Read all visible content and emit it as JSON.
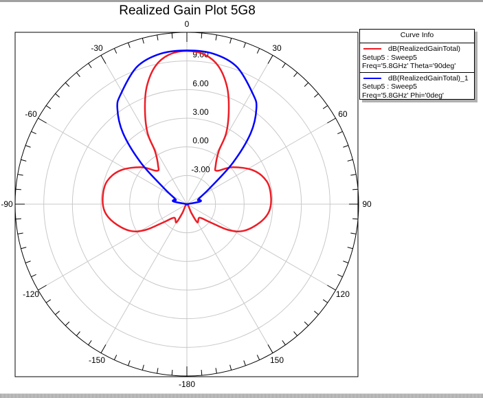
{
  "chart_data": {
    "type": "polar-line",
    "title": "Realized Gain Plot 5G8",
    "radial_range": [
      -6,
      12
    ],
    "radial_ticks": [
      -3,
      0,
      3,
      6,
      9
    ],
    "radial_tick_labels": [
      "-3.00",
      "0.00",
      "3.00",
      "6.00",
      "9.00"
    ],
    "angle_tick_labels": [
      {
        "angle": 0,
        "label": "0"
      },
      {
        "angle": 30,
        "label": "30"
      },
      {
        "angle": 60,
        "label": "60"
      },
      {
        "angle": 90,
        "label": "90"
      },
      {
        "angle": 120,
        "label": "120"
      },
      {
        "angle": 150,
        "label": "150"
      },
      {
        "angle": 180,
        "label": "-180"
      },
      {
        "angle": -150,
        "label": "-150"
      },
      {
        "angle": -120,
        "label": "-120"
      },
      {
        "angle": -90,
        "label": "-90"
      },
      {
        "angle": -60,
        "label": "-60"
      },
      {
        "angle": -30,
        "label": "-30"
      }
    ],
    "angle_direction": "clockwise, 0 at top",
    "grid": true,
    "legend_title": "Curve Info",
    "legend_placement": "top-right outside",
    "series": [
      {
        "name": "dB(RealizedGainTotal)",
        "line2": "Setup5 : Sweep5",
        "line3": "Freq='5.8GHz' Theta='90deg'",
        "color": "#ee1c25",
        "angles": [
          0,
          7,
          13,
          19,
          24,
          29,
          31,
          37,
          42,
          51,
          63,
          74,
          85,
          95,
          104,
          115,
          122,
          128,
          137,
          150,
          153,
          180
        ],
        "values": [
          10.05,
          9.75,
          8.8,
          6.95,
          4.8,
          2.5,
          0.5,
          -1.0,
          -1.3,
          0.15,
          1.8,
          2.7,
          2.85,
          2.65,
          1.9,
          0.6,
          -0.9,
          -2.95,
          -4.05,
          -3.8,
          -4.95,
          -6
        ]
      },
      {
        "name": "dB(RealizedGainTotal)_1",
        "line2": "Setup5 : Sweep5",
        "line3": "Freq='5.8GHz' Phi='0deg'",
        "color": "#0000ff",
        "angles": [
          0,
          10,
          20,
          31,
          36,
          42,
          48,
          55,
          67,
          72,
          79,
          92,
          180
        ],
        "values": [
          10.1,
          10.0,
          9.3,
          7.45,
          6.4,
          4.0,
          0.5,
          -3.05,
          -4.7,
          -4.55,
          -4.6,
          -6,
          -6
        ]
      }
    ]
  }
}
